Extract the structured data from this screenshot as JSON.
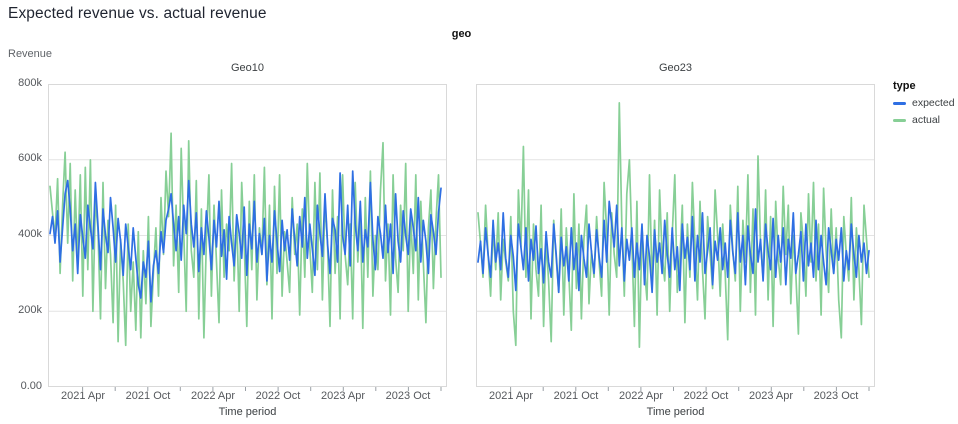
{
  "title": "Expected revenue vs. actual revenue",
  "facet_header": "geo",
  "y_axis": {
    "label": "Revenue",
    "ticks": [
      "800k",
      "600k",
      "400k",
      "200k",
      "0.00"
    ]
  },
  "x_axis": {
    "label": "Time period",
    "tick_months": [
      3,
      6,
      9,
      12,
      15,
      18,
      21,
      24,
      27,
      30,
      33,
      36
    ],
    "labels": [
      {
        "m": 3,
        "t": "2021 Apr"
      },
      {
        "m": 9,
        "t": "2021 Oct"
      },
      {
        "m": 15,
        "t": "2022 Apr"
      },
      {
        "m": 21,
        "t": "2022 Oct"
      },
      {
        "m": 27,
        "t": "2023 Apr"
      },
      {
        "m": 33,
        "t": "2023 Oct"
      }
    ]
  },
  "legend": {
    "title": "type",
    "items": [
      {
        "label": "expected",
        "color": "#2e6fe3"
      },
      {
        "label": "actual",
        "color": "#87cf96"
      }
    ]
  },
  "chart_data": {
    "type": "line",
    "title": "Expected revenue vs. actual revenue",
    "xlabel": "Time period",
    "ylabel": "Revenue",
    "x_unit": "week",
    "x_start": "2021-01",
    "x_end": "2023-12",
    "y_unit": "thousands",
    "ylim": [
      0,
      800
    ],
    "y_gridlines": [
      200,
      400,
      600
    ],
    "grid": true,
    "legend_position": "top-right",
    "facets": [
      {
        "name": "Geo10",
        "series": [
          {
            "name": "expected",
            "color": "#2e6fe3",
            "values": [
              405,
              450,
              380,
              465,
              330,
              420,
              510,
              545,
              470,
              360,
              430,
              300,
              455,
              395,
              340,
              480,
              420,
              365,
              540,
              430,
              310,
              470,
              400,
              355,
              500,
              420,
              330,
              445,
              385,
              295,
              430,
              370,
              310,
              420,
              340,
              270,
              235,
              330,
              290,
              385,
              225,
              320,
              360,
              300,
              410,
              355,
              440,
              470,
              510,
              430,
              360,
              450,
              335,
              480,
              405,
              545,
              430,
              370,
              460,
              305,
              420,
              350,
              465,
              395,
              310,
              440,
              370,
              490,
              345,
              415,
              285,
              450,
              380,
              320,
              455,
              405,
              340,
              475,
              295,
              430,
              365,
              490,
              330,
              405,
              350,
              445,
              280,
              400,
              330,
              465,
              385,
              305,
              440,
              360,
              415,
              335,
              470,
              390,
              320,
              450,
              370,
              500,
              340,
              430,
              365,
              295,
              480,
              405,
              345,
              510,
              380,
              300,
              445,
              415,
              330,
              565,
              400,
              350,
              480,
              320,
              570,
              430,
              360,
              490,
              330,
              415,
              370,
              540,
              390,
              310,
              450,
              405,
              340,
              480,
              355,
              430,
              300,
              510,
              385,
              330,
              465,
              400,
              350,
              470,
              420,
              360,
              500,
              330,
              440,
              385,
              300,
              455,
              410,
              350,
              460,
              525
            ]
          },
          {
            "name": "actual",
            "color": "#87cf96",
            "values": [
              530,
              460,
              395,
              550,
              300,
              480,
              620,
              380,
              590,
              280,
              520,
              330,
              560,
              240,
              580,
              310,
              600,
              200,
              490,
              420,
              180,
              540,
              260,
              440,
              350,
              170,
              480,
              120,
              390,
              280,
              110,
              430,
              200,
              330,
              150,
              410,
              130,
              360,
              220,
              450,
              160,
              300,
              420,
              240,
              500,
              350,
              570,
              450,
              670,
              320,
              480,
              250,
              630,
              410,
              200,
              650,
              360,
              290,
              545,
              180,
              470,
              130,
              390,
              560,
              240,
              480,
              330,
              170,
              520,
              290,
              430,
              360,
              590,
              280,
              450,
              200,
              540,
              380,
              160,
              490,
              310,
              560,
              230,
              420,
              350,
              580,
              270,
              480,
              180,
              530,
              300,
              560,
              240,
              410,
              330,
              250,
              500,
              350,
              430,
              190,
              470,
              290,
              590,
              370,
              250,
              540,
              310,
              565,
              230,
              490,
              380,
              160,
              520,
              300,
              450,
              180,
              560,
              350,
              270,
              430,
              180,
              540,
              330,
              470,
              155,
              500,
              290,
              570,
              240,
              400,
              310,
              520,
              645,
              280,
              430,
              190,
              560,
              340,
              250,
              480,
              360,
              590,
              200,
              450,
              300,
              560,
              230,
              490,
              330,
              170,
              420,
              520,
              260,
              440,
              560,
              290
            ]
          }
        ]
      },
      {
        "name": "Geo23",
        "series": [
          {
            "name": "expected",
            "color": "#2e6fe3",
            "values": [
              330,
              385,
              300,
              420,
              350,
              290,
              440,
              330,
              380,
              310,
              460,
              340,
              290,
              400,
              345,
              255,
              430,
              370,
              310,
              420,
              280,
              390,
              335,
              425,
              300,
              365,
              275,
              410,
              330,
              290,
              430,
              350,
              250,
              395,
              320,
              370,
              280,
              420,
              310,
              380,
              255,
              400,
              340,
              290,
              430,
              355,
              300,
              415,
              345,
              290,
              440,
              330,
              490,
              430,
              370,
              480,
              320,
              420,
              280,
              390,
              335,
              420,
              290,
              380,
              310,
              430,
              270,
              400,
              345,
              250,
              415,
              330,
              380,
              300,
              440,
              350,
              290,
              420,
              310,
              370,
              255,
              430,
              340,
              395,
              310,
              450,
              280,
              400,
              330,
              460,
              300,
              360,
              420,
              270,
              385,
              335,
              420,
              310,
              380,
              290,
              440,
              355,
              300,
              460,
              330,
              400,
              270,
              425,
              350,
              300,
              470,
              330,
              390,
              280,
              430,
              360,
              310,
              445,
              290,
              400,
              330,
              420,
              270,
              390,
              340,
              460,
              300,
              350,
              410,
              280,
              430,
              320,
              380,
              290,
              440,
              310,
              400,
              330,
              270,
              420,
              360,
              300,
              390,
              335,
              420,
              280,
              360,
              310,
              430,
              350,
              290,
              400,
              330,
              380,
              300,
              360
            ]
          },
          {
            "name": "actual",
            "color": "#87cf96",
            "values": [
              460,
              380,
              290,
              480,
              350,
              240,
              420,
              310,
              460,
              230,
              390,
              330,
              280,
              450,
              200,
              110,
              520,
              370,
              635,
              290,
              520,
              180,
              430,
              310,
              240,
              480,
              160,
              390,
              280,
              120,
              440,
              340,
              250,
              470,
              190,
              420,
              300,
              150,
              510,
              260,
              430,
              180,
              390,
              480,
              220,
              360,
              290,
              450,
              330,
              240,
              540,
              410,
              190,
              460,
              350,
              290,
              750,
              430,
              240,
              510,
              600,
              380,
              160,
              490,
              105,
              420,
              310,
              230,
              560,
              270,
              440,
              190,
              520,
              350,
              280,
              460,
              200,
              400,
              560,
              250,
              330,
              480,
              170,
              430,
              290,
              540,
              380,
              230,
              490,
              310,
              180,
              450,
              350,
              260,
              520,
              400,
              240,
              430,
              300,
              125,
              480,
              360,
              280,
              530,
              200,
              440,
              330,
              560,
              250,
              470,
              190,
              610,
              380,
              290,
              520,
              230,
              450,
              160,
              490,
              340,
              270,
              530,
              350,
              480,
              220,
              400,
              300,
              140,
              460,
              380,
              240,
              510,
              330,
              540,
              280,
              430,
              190,
              525,
              360,
              250,
              470,
              300,
              420,
              230,
              130,
              450,
              350,
              280,
              500,
              230,
              420,
              310,
              165,
              480,
              390,
              290
            ]
          }
        ]
      }
    ]
  }
}
